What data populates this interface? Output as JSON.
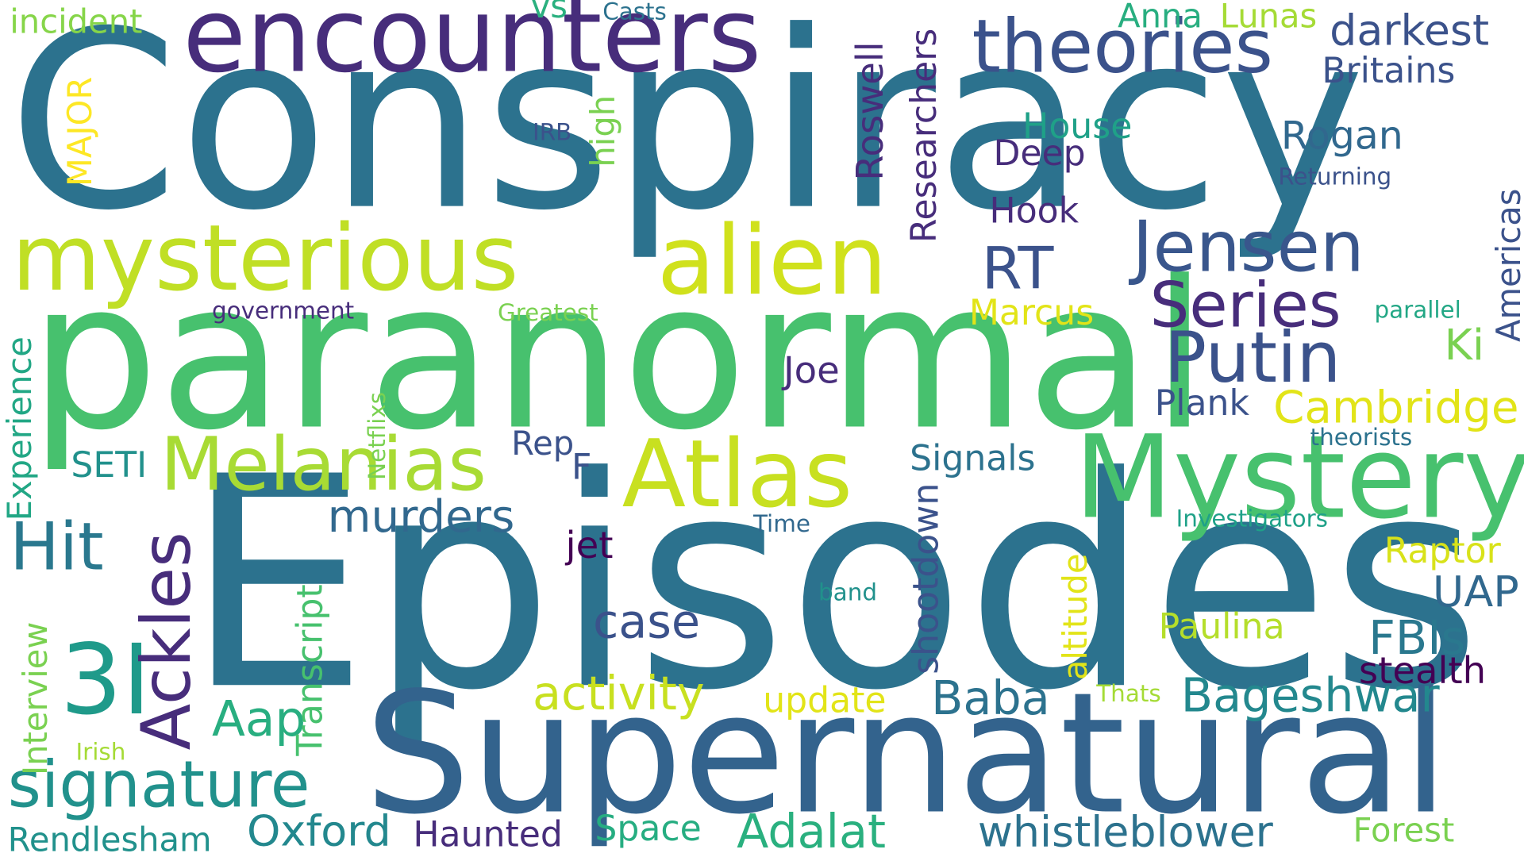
{
  "palette": {
    "dark_purple": "#440154",
    "indigo": "#472d7b",
    "slate_blue": "#3b528b",
    "steel_blue": "#2c728e",
    "teal": "#21918c",
    "green_teal": "#28ae80",
    "green": "#5ec962",
    "lime": "#addc30",
    "yellow": "#fde725"
  },
  "words": {
    "conspiracy": "Conspiracy",
    "episodes": "Episodes",
    "paranormal": "paranormal",
    "supernatural": "Supernatural",
    "mystery": "Mystery",
    "encounters": "encounters",
    "mysterious": "mysterious",
    "alien": "alien",
    "atlas": "Atlas",
    "theories": "theories",
    "melanias": "Melanias",
    "jensen": "Jensen",
    "putin": "Putin",
    "series": "Series",
    "ackles": "Ackles",
    "three_i": "3I",
    "hit": "Hit",
    "signature": "signature",
    "rt": "RT",
    "cambridge": "Cambridge",
    "murders": "murders",
    "activity": "activity",
    "bageshwar": "Bageshwar",
    "whistleblower": "whistleblower",
    "adalat": "Adalat",
    "oxford": "Oxford",
    "baba": "Baba",
    "darkest": "darkest",
    "rogan": "Rogan",
    "case": "case",
    "aap": "Aap",
    "uap": "UAP",
    "fbis": "FBIs",
    "britains": "Britains",
    "house": "House",
    "deep": "Deep",
    "hook": "Hook",
    "plank": "Plank",
    "signals": "Signals",
    "marcus": "Marcus",
    "paulina": "Paulina",
    "raptor": "Raptor",
    "stealth": "stealth",
    "update": "update",
    "haunted": "Haunted",
    "space": "Space",
    "forest": "Forest",
    "rendlesham": "Rendlesham",
    "joe": "Joe",
    "rep": "Rep",
    "f": "F",
    "jet": "jet",
    "ki": "Ki",
    "seti": "SETI",
    "anna": "Anna",
    "lunas": "Lunas",
    "incident": "incident",
    "vs": "vs",
    "casts": "Casts",
    "irb": "IRB",
    "returning": "Returning",
    "government": "government",
    "greatest": "Greatest",
    "parallel": "parallel",
    "theorists": "theorists",
    "investigators": "Investigators",
    "time": "Time",
    "band": "band",
    "thats": "Thats",
    "irish": "Irish",
    "roswell": "Roswell",
    "researchers": "Researchers",
    "high": "high",
    "major": "MAJOR",
    "americas": "Americas",
    "experience": "Experience",
    "netflixs": "Netflixs",
    "shootdown": "shootdown",
    "altitude": "altitude",
    "transcript": "Transcript",
    "interview": "Interview"
  }
}
